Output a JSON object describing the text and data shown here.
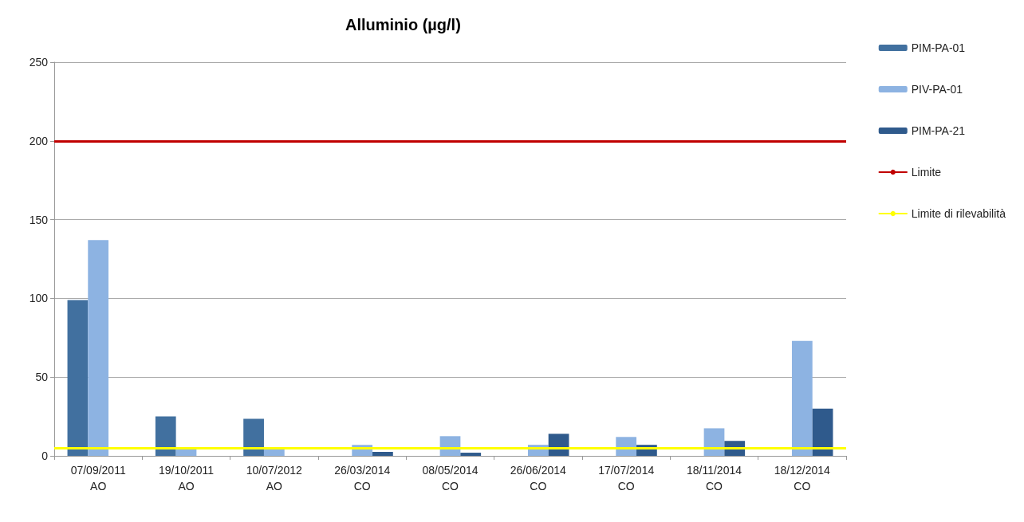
{
  "chart_data": {
    "type": "bar",
    "title": "Alluminio (µg/l)",
    "categories": [
      "07/09/2011\nAO",
      "19/10/2011\nAO",
      "10/07/2012\nAO",
      "26/03/2014\nCO",
      "08/05/2014\nCO",
      "26/06/2014\nCO",
      "17/07/2014\nCO",
      "18/11/2014\nCO",
      "18/12/2014\nCO"
    ],
    "series": [
      {
        "name": "PIM-PA-01",
        "color": "#41709f",
        "values": [
          99,
          25,
          23.5,
          null,
          null,
          null,
          null,
          null,
          null
        ]
      },
      {
        "name": "PIV-PA-01",
        "color": "#8db3e2",
        "values": [
          137,
          4.5,
          4.5,
          7,
          12.5,
          7,
          12,
          17.5,
          73
        ]
      },
      {
        "name": "PIM-PA-21",
        "color": "#2f5a8c",
        "values": [
          null,
          null,
          null,
          2.5,
          2,
          14,
          7,
          9.5,
          30
        ]
      }
    ],
    "ref_lines": [
      {
        "axis": "y",
        "value": 200,
        "label": "Limite",
        "color": "#c00000"
      },
      {
        "axis": "y",
        "value": 5,
        "label": "Limite di rilevabilità",
        "color": "#ffff00"
      }
    ],
    "ylim": [
      0,
      250
    ],
    "yticks": [
      0,
      50,
      100,
      150,
      200,
      250
    ],
    "grid": "y",
    "legend": "right"
  }
}
